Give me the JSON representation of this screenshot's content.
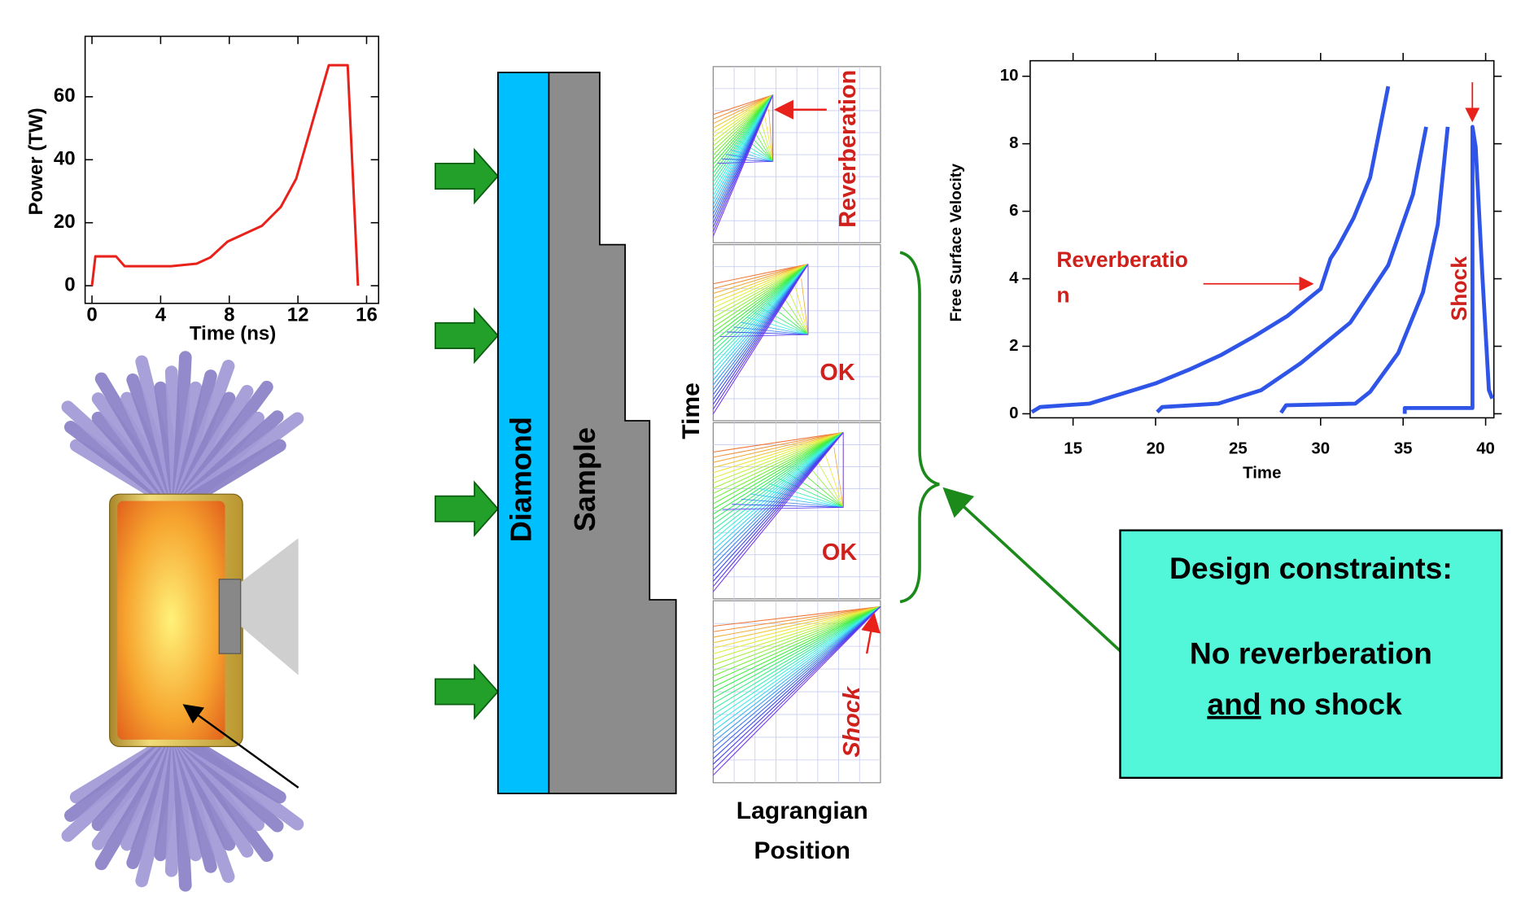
{
  "chart_data": [
    {
      "type": "line",
      "x_label": "Time (ns)",
      "y_label": "Power (TW)",
      "color": "#e8221b",
      "x": [
        0,
        0.2,
        1.4,
        1.9,
        4.6,
        6.1,
        6.9,
        7.9,
        9.9,
        11,
        11.9,
        13.8,
        14.9,
        15.5
      ],
      "values": [
        0,
        9.3,
        9.3,
        6.2,
        6.2,
        7,
        9,
        14,
        19,
        25,
        34,
        70,
        70,
        0
      ],
      "xlim": [
        -0.4,
        16.7
      ],
      "ylim": [
        -5.6,
        79.2
      ],
      "xticks": [
        0,
        4,
        8,
        12,
        16
      ],
      "yticks": [
        0,
        20,
        40,
        60
      ]
    },
    {
      "type": "line",
      "x_label": "Time",
      "y_label": "Free Surface Velocity",
      "annotations": [
        "Reverberatio",
        "n",
        "Shock"
      ],
      "series": [
        {
          "color": "#2f55e8",
          "x": [
            12.5,
            13,
            14.5,
            16,
            18,
            20,
            22,
            24,
            26,
            28,
            29.5,
            30,
            30.6,
            31,
            32,
            33,
            34.1
          ],
          "values": [
            0.05,
            0.2,
            0.25,
            0.3,
            0.6,
            0.9,
            1.3,
            1.75,
            2.3,
            2.9,
            3.5,
            3.7,
            4.6,
            4.9,
            5.8,
            7,
            9.7
          ]
        },
        {
          "color": "#2f55e8",
          "x": [
            20.1,
            20.4,
            23.8,
            26.4,
            28.8,
            31.8,
            34.1,
            35.6,
            36.4
          ],
          "values": [
            0.05,
            0.2,
            0.3,
            0.7,
            1.5,
            2.7,
            4.4,
            6.5,
            8.5
          ]
        },
        {
          "color": "#2f55e8",
          "x": [
            27.6,
            27.9,
            32.1,
            33,
            34.7,
            36.2,
            37.1,
            37.7
          ],
          "values": [
            0.03,
            0.25,
            0.3,
            0.65,
            1.8,
            3.6,
            5.6,
            8.5
          ]
        },
        {
          "color": "#2f55e8",
          "x": [
            35.1,
            35.1,
            39.2,
            39.2,
            39.4,
            39.8,
            40.2,
            40.4
          ],
          "values": [
            0,
            0.17,
            0.17,
            8.5,
            7.9,
            4.1,
            0.7,
            0.45
          ]
        }
      ],
      "xlim": [
        12.4,
        40.5
      ],
      "ylim": [
        -0.12,
        10.46
      ],
      "xticks": [
        15,
        20,
        25,
        30,
        35,
        40
      ],
      "yticks": [
        0,
        2,
        4,
        6,
        8,
        10
      ]
    }
  ],
  "target": {
    "diamond_label": "Diamond",
    "sample_label": "Sample"
  },
  "simulations": {
    "y_label": "Time",
    "x_label": [
      "Lagrangian",
      "Position"
    ],
    "panels": [
      "Reverberation",
      "OK",
      "OK",
      "Shock"
    ]
  },
  "callout": {
    "title": "Design constraints:",
    "line1": "No reverberation",
    "line2_underlined": "and",
    "line2_rest": "no shock"
  }
}
